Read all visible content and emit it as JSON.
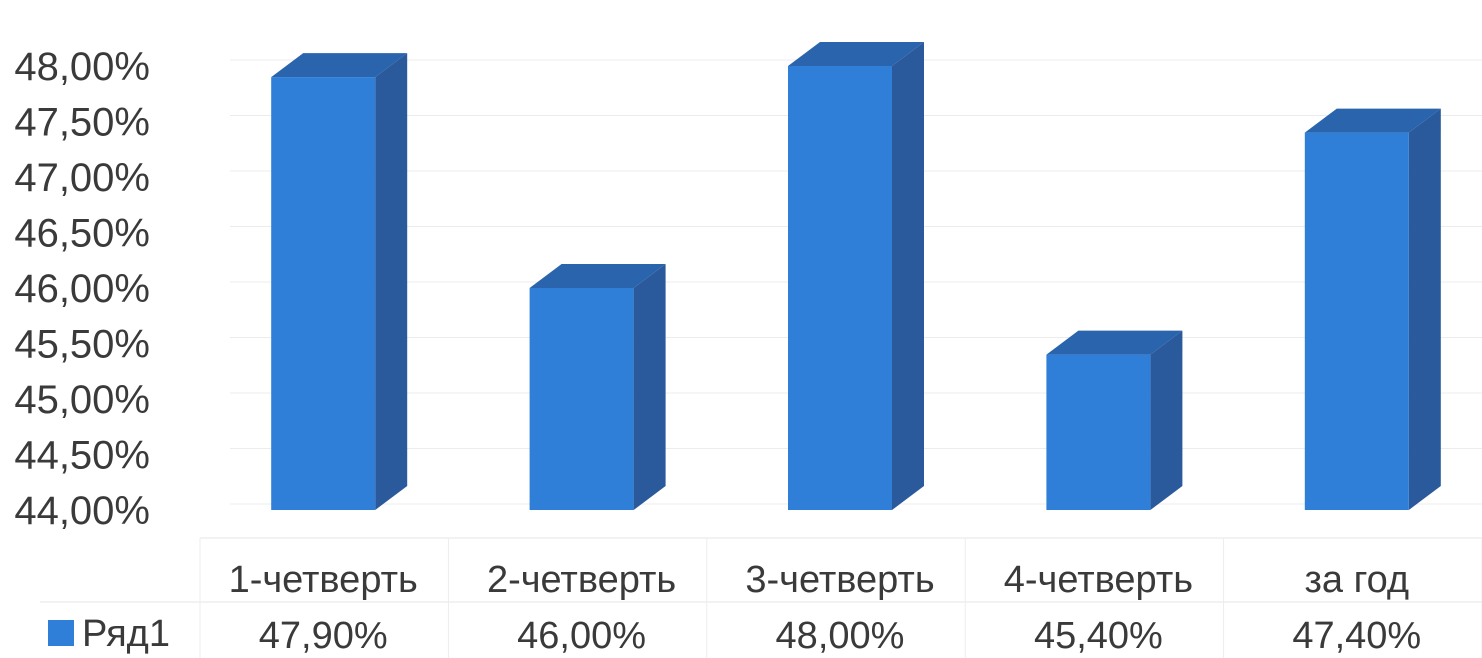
{
  "chart_data": {
    "type": "bar",
    "categories": [
      "1-четверть",
      "2-четверть",
      "3-четверть",
      "4-четверть",
      "за год"
    ],
    "series": [
      {
        "name": "Ряд1",
        "values": [
          47.9,
          46.0,
          48.0,
          45.4,
          47.4
        ],
        "labels": [
          "47,90%",
          "46,00%",
          "48,00%",
          "45,40%",
          "47,40%"
        ]
      }
    ],
    "y_ticks": [
      "44,00%",
      "44,50%",
      "45,00%",
      "45,50%",
      "46,00%",
      "46,50%",
      "47,00%",
      "47,50%",
      "48,00%"
    ],
    "ylim": [
      44.0,
      48.0
    ],
    "grid": true,
    "data_table": true,
    "bar_style": "3d",
    "colors": {
      "bar_front": "#2f7fd8",
      "bar_side": "#2a5a9c",
      "bar_top": "#2a64ad",
      "legend_key": "#2f7fd8"
    }
  }
}
